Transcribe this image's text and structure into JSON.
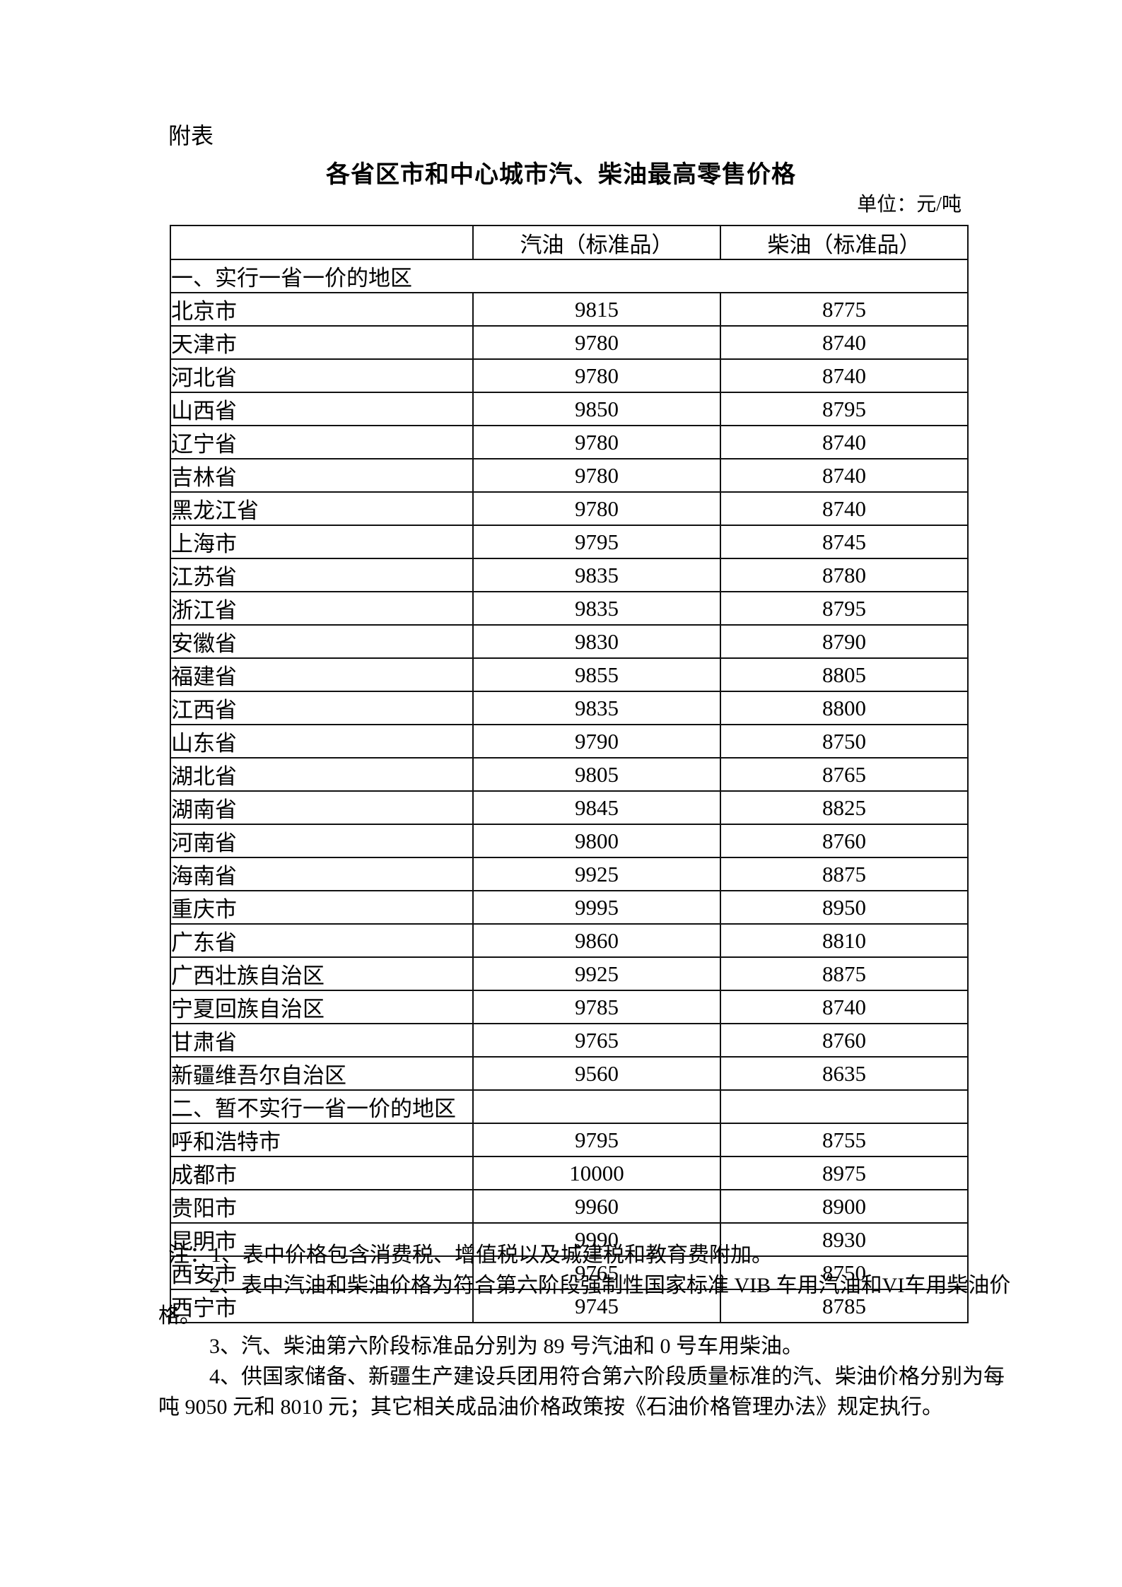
{
  "page": {
    "attachment_label": "附表",
    "title": "各省区市和中心城市汽、柴油最高零售价格",
    "unit": "单位：元/吨"
  },
  "table": {
    "columns": {
      "region": "",
      "gasoline": "汽油（标准品）",
      "diesel": "柴油（标准品）"
    },
    "sections": [
      {
        "heading": "一、实行一省一价的地区",
        "rows": [
          {
            "region": "北京市",
            "gasoline": "9815",
            "diesel": "8775"
          },
          {
            "region": "天津市",
            "gasoline": "9780",
            "diesel": "8740"
          },
          {
            "region": "河北省",
            "gasoline": "9780",
            "diesel": "8740"
          },
          {
            "region": "山西省",
            "gasoline": "9850",
            "diesel": "8795"
          },
          {
            "region": "辽宁省",
            "gasoline": "9780",
            "diesel": "8740"
          },
          {
            "region": "吉林省",
            "gasoline": "9780",
            "diesel": "8740"
          },
          {
            "region": "黑龙江省",
            "gasoline": "9780",
            "diesel": "8740"
          },
          {
            "region": "上海市",
            "gasoline": "9795",
            "diesel": "8745"
          },
          {
            "region": "江苏省",
            "gasoline": "9835",
            "diesel": "8780"
          },
          {
            "region": "浙江省",
            "gasoline": "9835",
            "diesel": "8795"
          },
          {
            "region": "安徽省",
            "gasoline": "9830",
            "diesel": "8790"
          },
          {
            "region": "福建省",
            "gasoline": "9855",
            "diesel": "8805"
          },
          {
            "region": "江西省",
            "gasoline": "9835",
            "diesel": "8800"
          },
          {
            "region": "山东省",
            "gasoline": "9790",
            "diesel": "8750"
          },
          {
            "region": "湖北省",
            "gasoline": "9805",
            "diesel": "8765"
          },
          {
            "region": "湖南省",
            "gasoline": "9845",
            "diesel": "8825"
          },
          {
            "region": "河南省",
            "gasoline": "9800",
            "diesel": "8760"
          },
          {
            "region": "海南省",
            "gasoline": "9925",
            "diesel": "8875"
          },
          {
            "region": "重庆市",
            "gasoline": "9995",
            "diesel": "8950"
          },
          {
            "region": "广东省",
            "gasoline": "9860",
            "diesel": "8810"
          },
          {
            "region": "广西壮族自治区",
            "gasoline": "9925",
            "diesel": "8875"
          },
          {
            "region": "宁夏回族自治区",
            "gasoline": "9785",
            "diesel": "8740"
          },
          {
            "region": "甘肃省",
            "gasoline": "9765",
            "diesel": "8760"
          },
          {
            "region": "新疆维吾尔自治区",
            "gasoline": "9560",
            "diesel": "8635"
          }
        ]
      },
      {
        "heading": "二、暂不实行一省一价的地区",
        "rows": [
          {
            "region": "呼和浩特市",
            "gasoline": "9795",
            "diesel": "8755"
          },
          {
            "region": "成都市",
            "gasoline": "10000",
            "diesel": "8975"
          },
          {
            "region": "贵阳市",
            "gasoline": "9960",
            "diesel": "8900"
          },
          {
            "region": "昆明市",
            "gasoline": "9990",
            "diesel": "8930"
          },
          {
            "region": "西安市",
            "gasoline": "9765",
            "diesel": "8750"
          },
          {
            "region": "西宁市",
            "gasoline": "9745",
            "diesel": "8785"
          }
        ]
      }
    ]
  },
  "notes": {
    "items": [
      {
        "lines": [
          "注：1、表中价格包含消费税、增值税以及城建税和教育费附加。"
        ]
      },
      {
        "lines": [
          "2、表中汽油和柴油价格为符合第六阶段强制性国家标准 VIB 车用汽油和VI车用柴油价",
          "格。"
        ]
      },
      {
        "lines": [
          "3、汽、柴油第六阶段标准品分别为 89 号汽油和 0 号车用柴油。"
        ]
      },
      {
        "lines": [
          "4、供国家储备、新疆生产建设兵团用符合第六阶段质量标准的汽、柴油价格分别为每",
          "吨 9050 元和 8010 元；其它相关成品油价格政策按《石油价格管理办法》规定执行。"
        ]
      }
    ]
  }
}
